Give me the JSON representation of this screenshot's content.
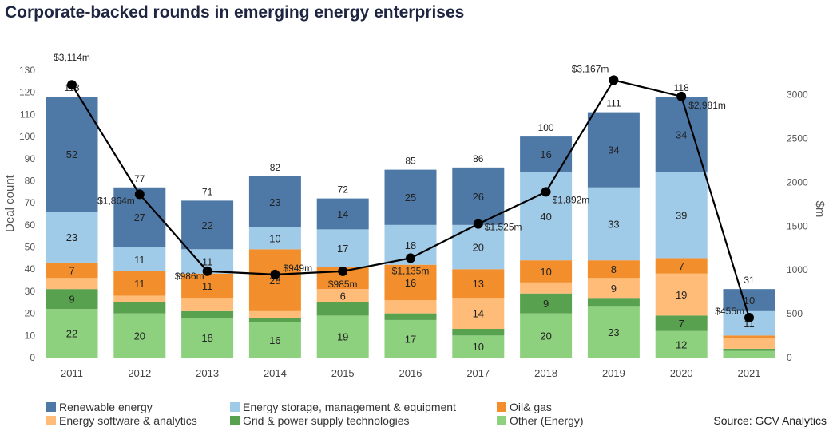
{
  "chart_data": {
    "type": "bar",
    "stacked": true,
    "title": "Corporate-backed rounds in emerging energy enterprises",
    "ylabel": "Deal count",
    "y2label": "$m",
    "categories": [
      "2011",
      "2012",
      "2013",
      "2014",
      "2015",
      "2016",
      "2017",
      "2018",
      "2019",
      "2020",
      "2021"
    ],
    "ylim": [
      0,
      130
    ],
    "yticks": [
      0,
      10,
      20,
      30,
      40,
      50,
      60,
      70,
      80,
      90,
      100,
      110,
      120,
      130
    ],
    "y2lim": [
      0,
      3280
    ],
    "y2ticks": [
      0,
      500,
      1000,
      1500,
      2000,
      2500,
      3000
    ],
    "grid": false,
    "legend_placement": "bottom",
    "series": [
      {
        "name": "Other (Energy)",
        "color": "#8dd17e",
        "values": [
          22,
          20,
          18,
          16,
          19,
          17,
          10,
          20,
          23,
          12,
          3
        ],
        "labels": [
          "22",
          "20",
          "18",
          "16",
          "19",
          "17",
          "10",
          "20",
          "23",
          "12",
          ""
        ]
      },
      {
        "name": "Grid & power supply technologies",
        "color": "#58a14e",
        "values": [
          9,
          5,
          3,
          2,
          6,
          3,
          3,
          9,
          4,
          7,
          1
        ],
        "labels": [
          "9",
          "",
          "",
          "",
          "",
          "",
          "",
          "9",
          "",
          "7",
          ""
        ]
      },
      {
        "name": "Energy software & analytics",
        "color": "#ffbc79",
        "values": [
          5,
          3,
          6,
          3,
          6,
          6,
          14,
          5,
          9,
          19,
          5
        ],
        "labels": [
          "",
          "",
          "",
          "",
          "6",
          "",
          "14",
          "",
          "9",
          "19",
          ""
        ]
      },
      {
        "name": "Oil& gas",
        "color": "#f28e2b",
        "values": [
          7,
          11,
          11,
          28,
          10,
          16,
          13,
          10,
          8,
          7,
          1
        ],
        "labels": [
          "7",
          "11",
          "11",
          "28",
          "",
          "16",
          "13",
          "10",
          "8",
          "7",
          ""
        ]
      },
      {
        "name": "Energy storage, management & equipment",
        "color": "#a0cbe8",
        "values": [
          23,
          11,
          11,
          10,
          17,
          18,
          20,
          40,
          33,
          39,
          11
        ],
        "labels": [
          "23",
          "11",
          "11",
          "10",
          "17",
          "18",
          "20",
          "40",
          "33",
          "39",
          "11"
        ]
      },
      {
        "name": "Renewable energy",
        "color": "#4e79a7",
        "values": [
          52,
          27,
          22,
          23,
          14,
          25,
          26,
          16,
          34,
          34,
          10
        ],
        "labels": [
          "52",
          "27",
          "22",
          "23",
          "14",
          "25",
          "26",
          "16",
          "34",
          "34",
          "10"
        ]
      }
    ],
    "totals": [
      "118",
      "77",
      "71",
      "82",
      "72",
      "85",
      "86",
      "100",
      "111",
      "118",
      "31"
    ],
    "line": {
      "axis": "right",
      "color": "#000000",
      "values": [
        3114,
        1864,
        986,
        949,
        985,
        1135,
        1525,
        1892,
        3167,
        2981,
        455
      ],
      "labels": [
        "$3,114m",
        "$1,864m",
        "$986m",
        "$949m",
        "$985m",
        "$1,135m",
        "$1,525m",
        "$1,892m",
        "$3,167m",
        "$2,981m",
        "$455m"
      ]
    }
  },
  "legend": [
    {
      "label": "Renewable energy",
      "color": "#4e79a7"
    },
    {
      "label": "Energy storage, management & equipment",
      "color": "#a0cbe8"
    },
    {
      "label": "Oil& gas",
      "color": "#f28e2b"
    },
    {
      "label": "Energy software & analytics",
      "color": "#ffbc79"
    },
    {
      "label": "Grid & power supply technologies",
      "color": "#58a14e"
    },
    {
      "label": "Other (Energy)",
      "color": "#8dd17e"
    }
  ],
  "source": "Source: GCV Analytics"
}
